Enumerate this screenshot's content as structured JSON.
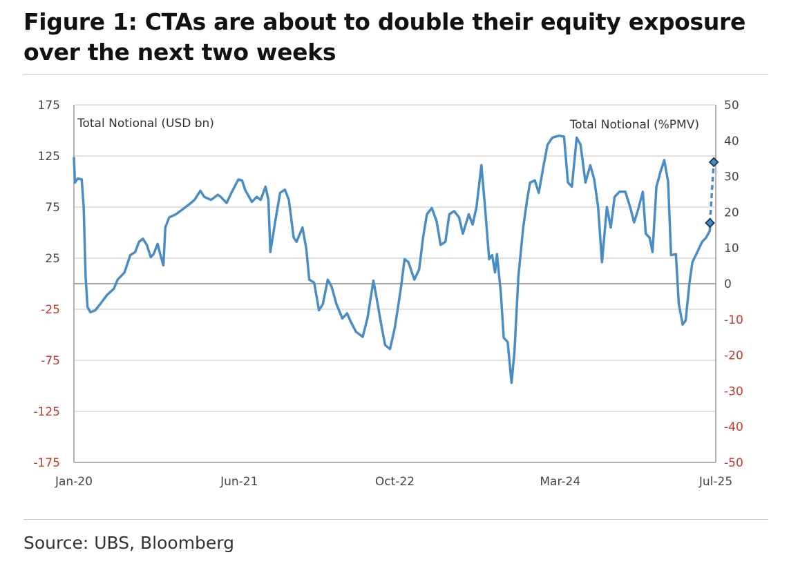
{
  "chart_data": {
    "type": "line",
    "title": "Figure 1: CTAs are about to double their equity exposure over the next two weeks",
    "source": "Source: UBS, Bloomberg",
    "left_axis": {
      "label": "Total Notional (USD bn)",
      "ylim": [
        -175,
        175
      ],
      "ticks": [
        175,
        125,
        75,
        25,
        -25,
        -75,
        -125,
        -175
      ]
    },
    "right_axis": {
      "label": "Total Notional (%PMV)",
      "ylim": [
        -50,
        50
      ],
      "ticks": [
        50,
        40,
        30,
        20,
        10,
        0,
        -10,
        -20,
        -30,
        -40,
        -50
      ]
    },
    "x_unit": "months since Jan-20",
    "xlim": [
      0,
      66
    ],
    "x_ticks": [
      {
        "x": 0,
        "label": "Jan-20"
      },
      {
        "x": 17,
        "label": "Jun-21"
      },
      {
        "x": 33,
        "label": "Oct-22"
      },
      {
        "x": 50,
        "label": "Mar-24"
      },
      {
        "x": 66,
        "label": "Jul-25"
      }
    ],
    "grid": true,
    "line_color": "#4a8cc4",
    "negative_tick_color": "#c0392b",
    "series": [
      {
        "name": "Total Notional (USD bn)",
        "points": [
          [
            0,
            124
          ],
          [
            0.1,
            99
          ],
          [
            0.4,
            103
          ],
          [
            0.8,
            102
          ],
          [
            1.0,
            75
          ],
          [
            1.2,
            7
          ],
          [
            1.4,
            -23
          ],
          [
            1.7,
            -28
          ],
          [
            2.2,
            -26
          ],
          [
            2.7,
            -20
          ],
          [
            3.4,
            -11
          ],
          [
            4.1,
            -5
          ],
          [
            4.5,
            4
          ],
          [
            5.2,
            11
          ],
          [
            5.8,
            28
          ],
          [
            6.3,
            31
          ],
          [
            6.7,
            41
          ],
          [
            7.1,
            44
          ],
          [
            7.5,
            38
          ],
          [
            7.9,
            26
          ],
          [
            8.2,
            29
          ],
          [
            8.6,
            39
          ],
          [
            8.9,
            28
          ],
          [
            9.2,
            18
          ],
          [
            9.4,
            55
          ],
          [
            9.8,
            65
          ],
          [
            10.5,
            68
          ],
          [
            11.2,
            73
          ],
          [
            11.9,
            78
          ],
          [
            12.4,
            82
          ],
          [
            13.0,
            91
          ],
          [
            13.4,
            85
          ],
          [
            14.1,
            82
          ],
          [
            14.8,
            87
          ],
          [
            15.1,
            85
          ],
          [
            15.7,
            79
          ],
          [
            16.2,
            89
          ],
          [
            16.9,
            102
          ],
          [
            17.3,
            101
          ],
          [
            17.6,
            92
          ],
          [
            18.3,
            80
          ],
          [
            18.8,
            85
          ],
          [
            19.2,
            82
          ],
          [
            19.7,
            95
          ],
          [
            20.0,
            82
          ],
          [
            20.2,
            31
          ],
          [
            20.7,
            61
          ],
          [
            21.2,
            89
          ],
          [
            21.7,
            92
          ],
          [
            22.1,
            82
          ],
          [
            22.6,
            45
          ],
          [
            22.9,
            41
          ],
          [
            23.5,
            55
          ],
          [
            23.9,
            34
          ],
          [
            24.2,
            4
          ],
          [
            24.7,
            1
          ],
          [
            25.2,
            -26
          ],
          [
            25.6,
            -20
          ],
          [
            26.1,
            4
          ],
          [
            26.5,
            -3
          ],
          [
            27.0,
            -20
          ],
          [
            27.6,
            -34
          ],
          [
            28.1,
            -29
          ],
          [
            28.4,
            -36
          ],
          [
            29.0,
            -47
          ],
          [
            29.7,
            -52
          ],
          [
            30.2,
            -33
          ],
          [
            30.8,
            3
          ],
          [
            31.1,
            -13
          ],
          [
            31.6,
            -40
          ],
          [
            32.0,
            -60
          ],
          [
            32.5,
            -64
          ],
          [
            33.0,
            -43
          ],
          [
            33.6,
            -6
          ],
          [
            34.0,
            24
          ],
          [
            34.4,
            21
          ],
          [
            35.0,
            4
          ],
          [
            35.5,
            14
          ],
          [
            35.9,
            45
          ],
          [
            36.3,
            68
          ],
          [
            36.8,
            74
          ],
          [
            37.3,
            61
          ],
          [
            37.7,
            38
          ],
          [
            38.2,
            41
          ],
          [
            38.6,
            68
          ],
          [
            39.1,
            71
          ],
          [
            39.6,
            65
          ],
          [
            40.0,
            49
          ],
          [
            40.6,
            68
          ],
          [
            41.0,
            58
          ],
          [
            41.4,
            75
          ],
          [
            41.9,
            116
          ],
          [
            42.3,
            72
          ],
          [
            42.7,
            24
          ],
          [
            43.0,
            28
          ],
          [
            43.3,
            11
          ],
          [
            43.5,
            29
          ],
          [
            43.9,
            -9
          ],
          [
            44.2,
            -53
          ],
          [
            44.6,
            -57
          ],
          [
            45.0,
            -97
          ],
          [
            45.3,
            -67
          ],
          [
            45.7,
            7
          ],
          [
            46.2,
            55
          ],
          [
            46.6,
            82
          ],
          [
            46.9,
            99
          ],
          [
            47.4,
            101
          ],
          [
            47.8,
            89
          ],
          [
            48.3,
            116
          ],
          [
            48.7,
            136
          ],
          [
            49.2,
            143
          ],
          [
            49.9,
            145
          ],
          [
            50.4,
            144
          ],
          [
            50.8,
            99
          ],
          [
            51.2,
            95
          ],
          [
            51.7,
            143
          ],
          [
            52.1,
            136
          ],
          [
            52.6,
            99
          ],
          [
            53.1,
            116
          ],
          [
            53.5,
            102
          ],
          [
            53.9,
            75
          ],
          [
            54.3,
            21
          ],
          [
            54.8,
            75
          ],
          [
            55.2,
            55
          ],
          [
            55.6,
            85
          ],
          [
            56.1,
            90
          ],
          [
            56.7,
            90
          ],
          [
            57.2,
            75
          ],
          [
            57.6,
            60
          ],
          [
            58.0,
            72
          ],
          [
            58.5,
            90
          ],
          [
            58.8,
            49
          ],
          [
            59.2,
            45
          ],
          [
            59.5,
            31
          ],
          [
            59.9,
            95
          ],
          [
            60.3,
            109
          ],
          [
            60.7,
            121
          ],
          [
            61.1,
            100
          ],
          [
            61.4,
            28
          ],
          [
            61.9,
            29
          ],
          [
            62.2,
            -20
          ],
          [
            62.6,
            -40
          ],
          [
            62.9,
            -36
          ],
          [
            63.3,
            1
          ],
          [
            63.6,
            21
          ],
          [
            64.1,
            31
          ],
          [
            64.6,
            41
          ],
          [
            65.0,
            45
          ],
          [
            65.4,
            52
          ]
        ],
        "projection": [
          [
            65.4,
            59.5
          ],
          [
            65.8,
            119
          ]
        ]
      }
    ]
  }
}
